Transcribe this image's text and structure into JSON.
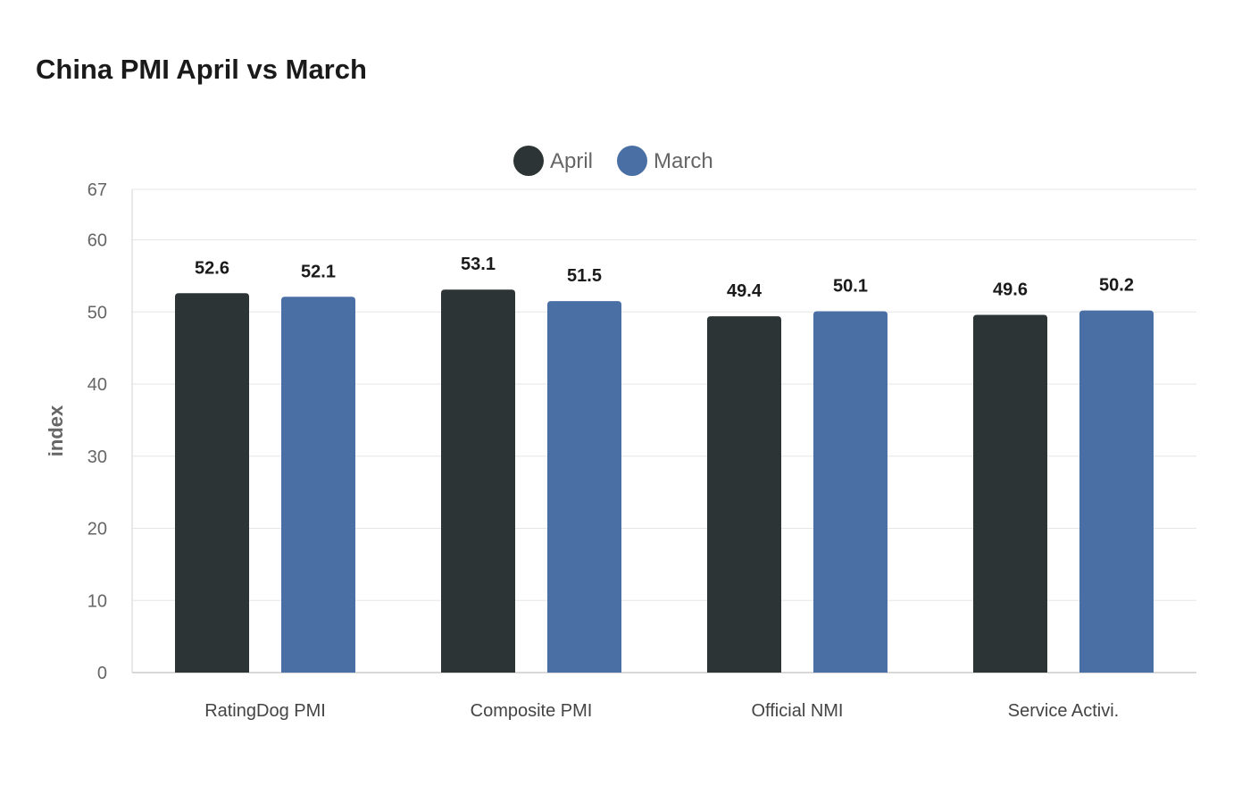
{
  "chart_data": {
    "type": "bar",
    "title": "China PMI April vs March",
    "ylabel": "index",
    "xlabel": "",
    "categories": [
      "RatingDog PMI",
      "Composite PMI",
      "Official NMI",
      "Service Activi."
    ],
    "series": [
      {
        "name": "April",
        "values": [
          52.6,
          53.1,
          49.4,
          49.6
        ],
        "color": "#2d3436"
      },
      {
        "name": "March",
        "values": [
          52.1,
          51.5,
          50.1,
          50.2
        ],
        "color": "#4a6fa5"
      }
    ],
    "ylim": [
      0,
      67
    ],
    "yticks": [
      0,
      10,
      20,
      30,
      40,
      50,
      60,
      67
    ],
    "grid": true,
    "legend_position": "top-center",
    "data_labels": true
  }
}
